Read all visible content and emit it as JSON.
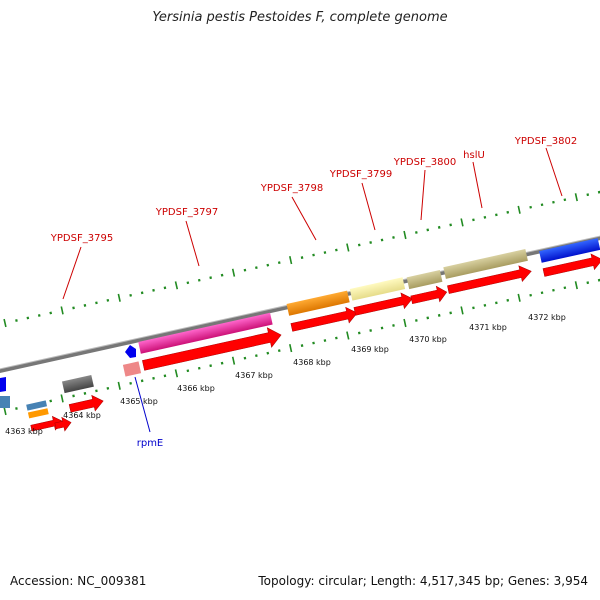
{
  "title": "Yersinia pestis Pestoides F, complete genome",
  "footer": {
    "accession": "Accession: NC_009381",
    "stats": "Topology: circular; Length: 4,517,345 bp; Genes: 3,954"
  },
  "ticks": [
    "4363 kbp",
    "4364 kbp",
    "4365 kbp",
    "4366 kbp",
    "4367 kbp",
    "4368 kbp",
    "4369 kbp",
    "4370 kbp",
    "4371 kbp",
    "4372 kbp"
  ],
  "gene_labels_top": [
    "YPDSF_3795",
    "YPDSF_3797",
    "YPDSF_3798",
    "YPDSF_3799",
    "YPDSF_3800",
    "hslU",
    "YPDSF_3802"
  ],
  "gene_labels_bottom": [
    "rpmE"
  ],
  "colors": {
    "label_red": "#cc0000",
    "label_blue": "#0000cc",
    "cds": "#ff0000",
    "tick_green": "#228b22",
    "backbone": "#888888"
  }
}
